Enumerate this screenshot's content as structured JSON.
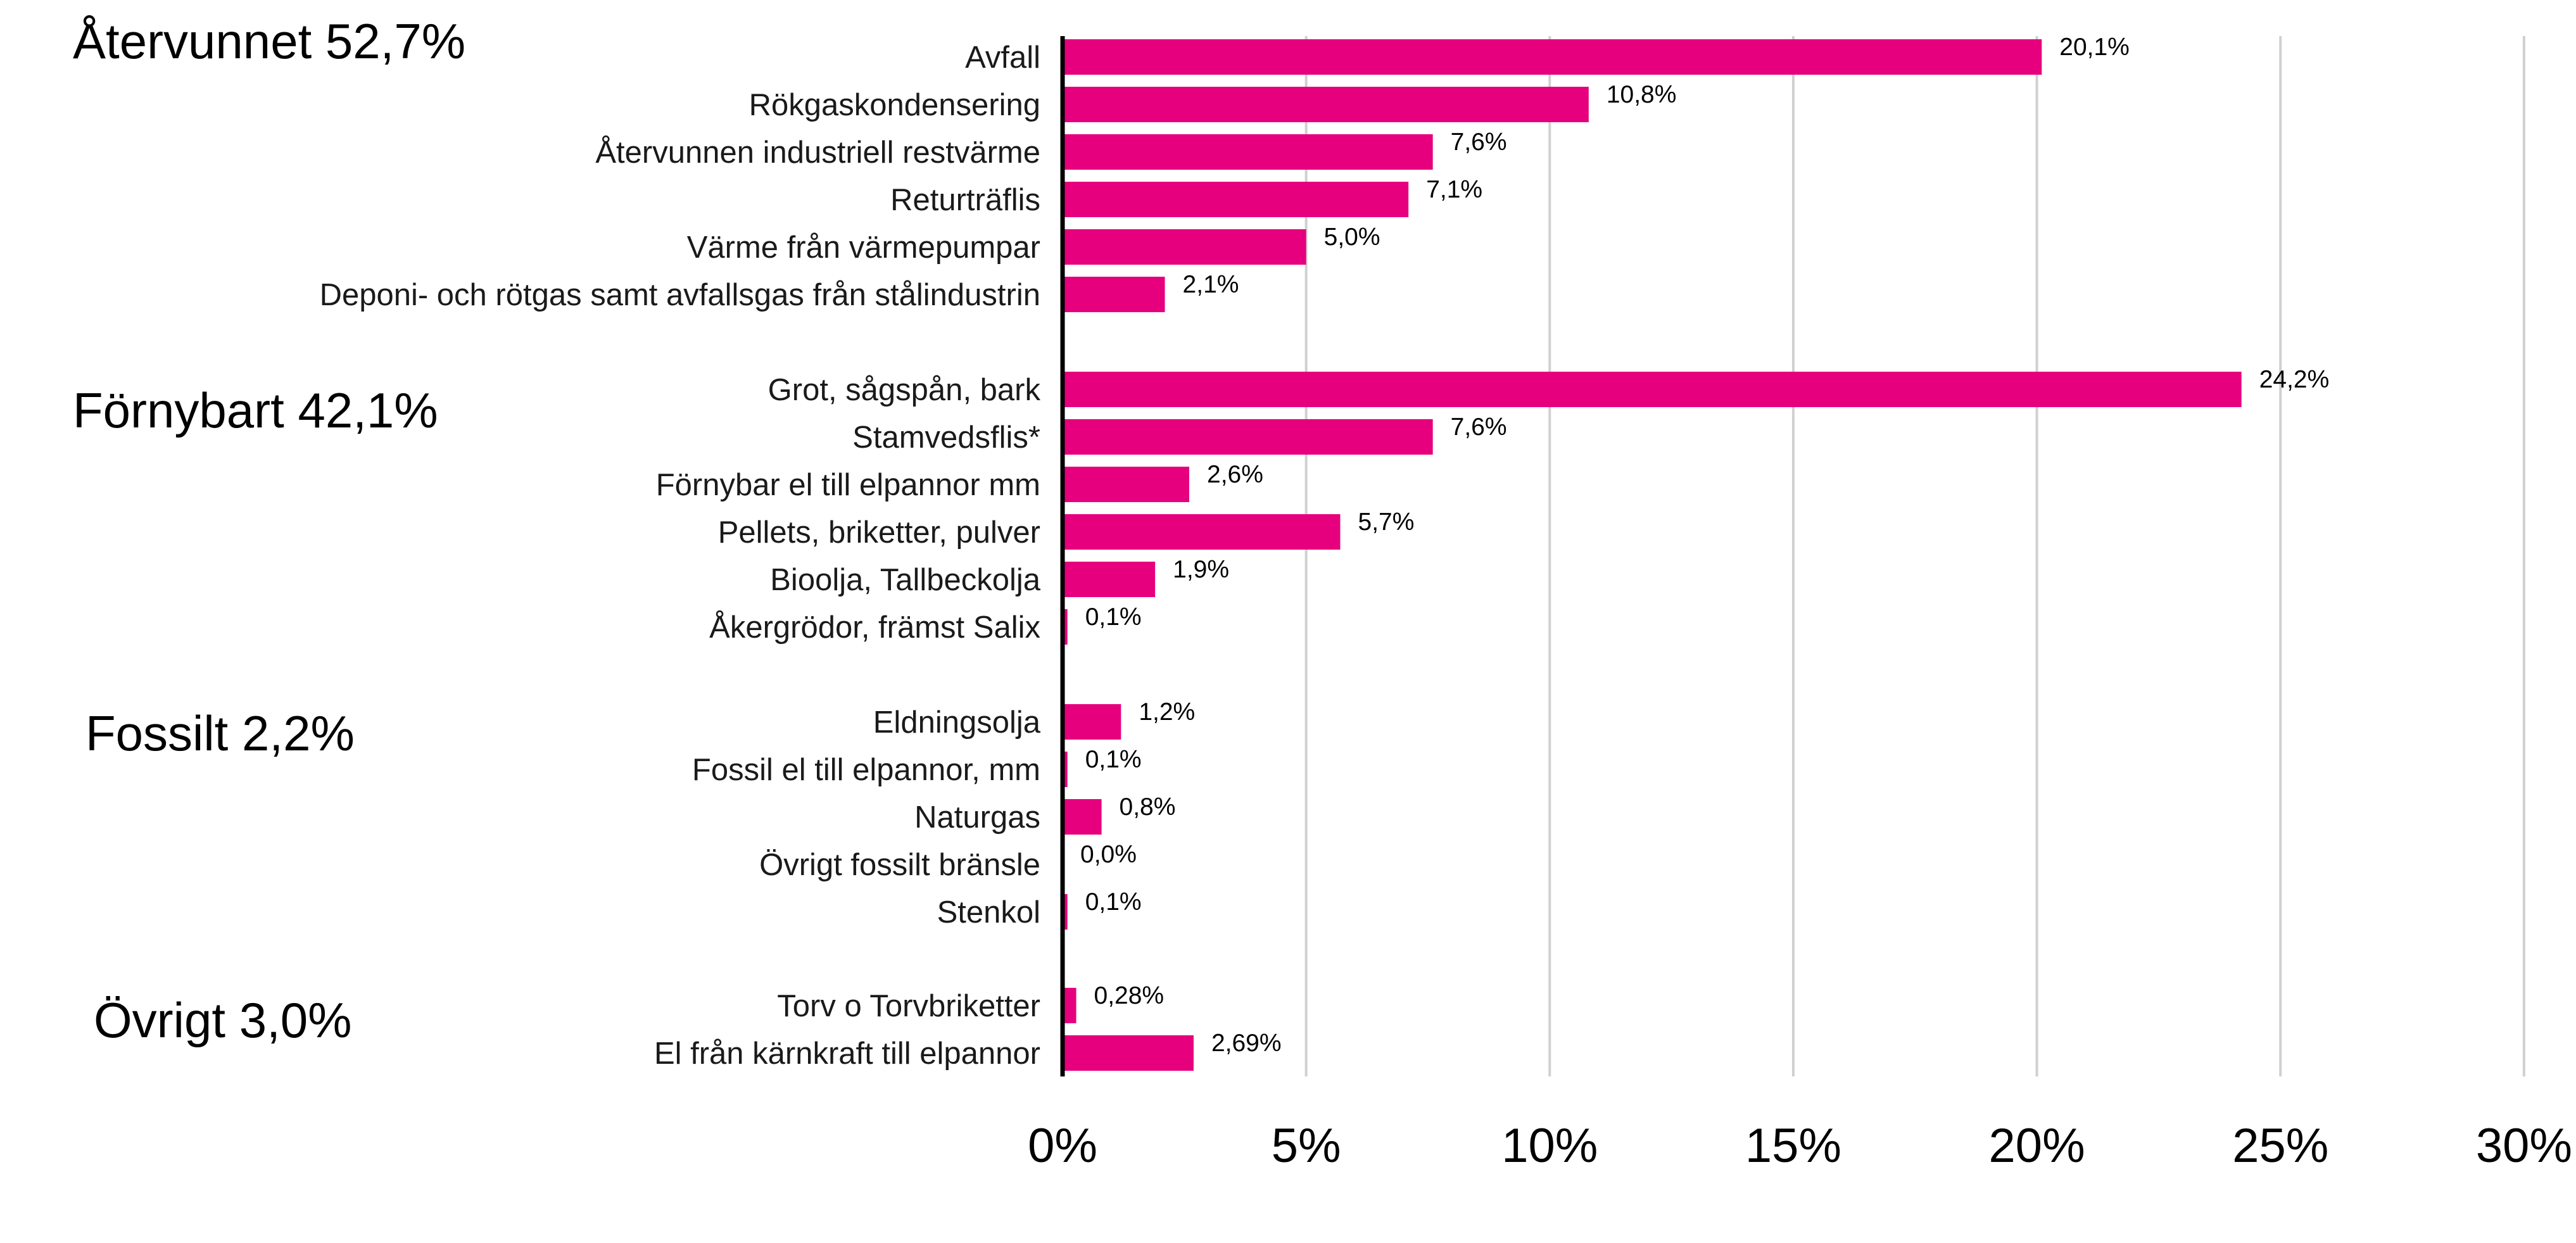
{
  "chart_data": {
    "type": "bar",
    "orientation": "horizontal",
    "bar_color": "#E6007E",
    "xlim": [
      0,
      30
    ],
    "grid": true,
    "x_ticks": [
      "0%",
      "5%",
      "10%",
      "15%",
      "20%",
      "25%",
      "30%"
    ],
    "groups": [
      {
        "label": "Återvunnet 52,7%",
        "categories": [
          "Avfall",
          "Rökgaskondensering",
          "Återvunnen industriell restvärme",
          "Returträflis",
          "Värme från värmepumpar",
          "Deponi- och rötgas samt avfallsgas från stålindustrin"
        ],
        "values": [
          20.1,
          10.8,
          7.6,
          7.1,
          5.0,
          2.1
        ],
        "value_labels": [
          "20,1%",
          "10,8%",
          "7,6%",
          "7,1%",
          "5,0%",
          "2,1%"
        ]
      },
      {
        "label": "Förnybart 42,1%",
        "categories": [
          "Grot, sågspån, bark",
          "Stamvedsflis*",
          "Förnybar el till elpannor mm",
          "Pellets, briketter, pulver",
          "Bioolja, Tallbeckolja",
          "Åkergrödor, främst Salix"
        ],
        "values": [
          24.2,
          7.6,
          2.6,
          5.7,
          1.9,
          0.1
        ],
        "value_labels": [
          "24,2%",
          "7,6%",
          "2,6%",
          "5,7%",
          "1,9%",
          "0,1%"
        ]
      },
      {
        "label": "Fossilt 2,2%",
        "categories": [
          "Eldningsolja",
          "Fossil el till elpannor, mm",
          "Naturgas",
          "Övrigt fossilt bränsle",
          "Stenkol"
        ],
        "values": [
          1.2,
          0.1,
          0.8,
          0.0,
          0.1
        ],
        "value_labels": [
          "1,2%",
          "0,1%",
          "0,8%",
          "0,0%",
          "0,1%"
        ]
      },
      {
        "label": "Övrigt 3,0%",
        "categories": [
          "Torv o Torvbriketter",
          "El från kärnkraft till elpannor"
        ],
        "values": [
          0.28,
          2.69
        ],
        "value_labels": [
          "0,28%",
          "2,69%"
        ]
      }
    ]
  }
}
